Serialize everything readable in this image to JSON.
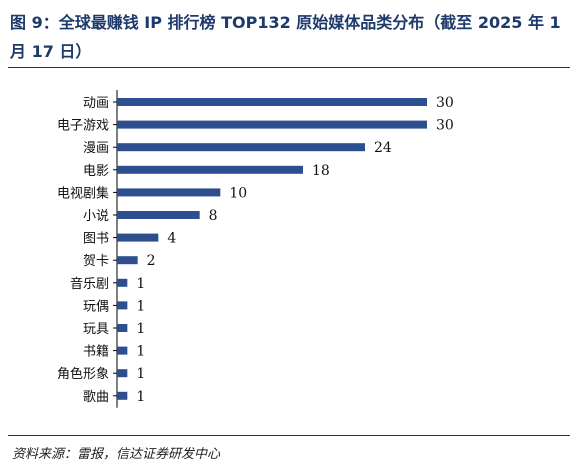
{
  "figure": {
    "title": "图 9：全球最赚钱 IP 排行榜 TOP132 原始媒体品类分布（截至 2025 年 1 月 17 日）",
    "source": "资料来源：雷报，信达证券研发中心"
  },
  "chart_data": {
    "type": "bar",
    "orientation": "horizontal",
    "categories": [
      "动画",
      "电子游戏",
      "漫画",
      "电影",
      "电视剧集",
      "小说",
      "图书",
      "贺卡",
      "音乐剧",
      "玩偶",
      "玩具",
      "书籍",
      "角色形象",
      "歌曲"
    ],
    "values": [
      30,
      30,
      24,
      18,
      10,
      8,
      4,
      2,
      1,
      1,
      1,
      1,
      1,
      1
    ],
    "xlim": [
      0,
      30
    ],
    "grid": false,
    "bar_color": "#2e4f8f",
    "data_labels": true
  }
}
